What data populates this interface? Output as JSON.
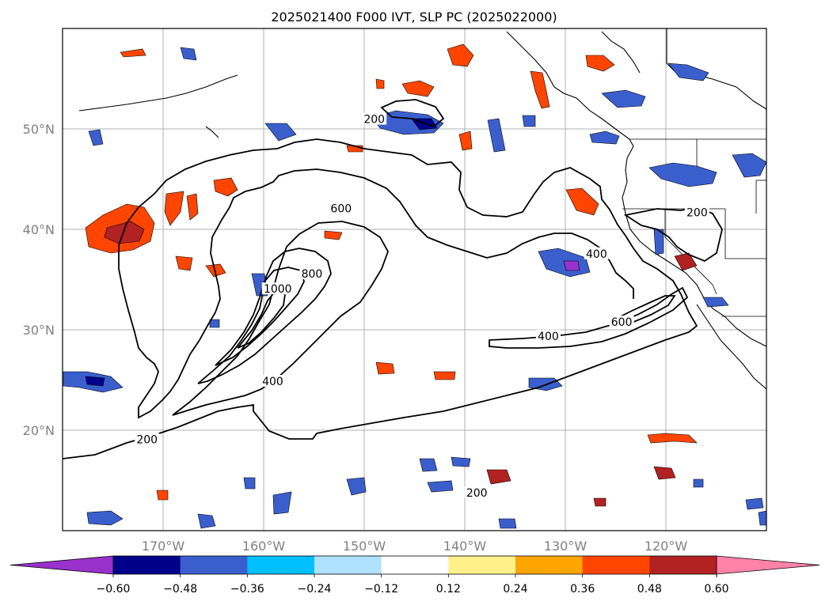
{
  "title": "2025021400 F000 IVT, SLP PC (2025022000)",
  "map": {
    "lon_range": [
      -180,
      -110
    ],
    "lat_range": [
      10,
      60
    ],
    "lat_ticks": [
      {
        "value": 20,
        "label": "20°N"
      },
      {
        "value": 30,
        "label": "30°N"
      },
      {
        "value": 40,
        "label": "40°N"
      },
      {
        "value": 50,
        "label": "50°N"
      }
    ],
    "lon_ticks": [
      {
        "value": -170,
        "label": "170°W"
      },
      {
        "value": -160,
        "label": "160°W"
      },
      {
        "value": -150,
        "label": "150°W"
      },
      {
        "value": -140,
        "label": "140°W"
      },
      {
        "value": -130,
        "label": "130°W"
      },
      {
        "value": -120,
        "label": "120°W"
      }
    ],
    "grid": true,
    "contour_labels": [
      {
        "text": "200",
        "lon": -149,
        "lat": 50.9
      },
      {
        "text": "600",
        "lon": -152.3,
        "lat": 42.0
      },
      {
        "text": "800",
        "lon": -155.2,
        "lat": 35.5
      },
      {
        "text": "1000",
        "lon": -158.6,
        "lat": 34.0
      },
      {
        "text": "400",
        "lon": -159.1,
        "lat": 24.8
      },
      {
        "text": "200",
        "lon": -171.6,
        "lat": 19.0
      },
      {
        "text": "200",
        "lon": -138.8,
        "lat": 13.7
      },
      {
        "text": "400",
        "lon": -126.9,
        "lat": 37.5
      },
      {
        "text": "400",
        "lon": -131.7,
        "lat": 29.3
      },
      {
        "text": "600",
        "lon": -124.4,
        "lat": 30.7
      },
      {
        "text": "200",
        "lon": -116.9,
        "lat": 41.6
      }
    ]
  },
  "colorbar": {
    "tick_labels": [
      "−0.60",
      "−0.48",
      "−0.36",
      "−0.24",
      "−0.12",
      "0.12",
      "0.24",
      "0.36",
      "0.48",
      "0.60"
    ],
    "under_color": "#9932cc",
    "colors": [
      "#00008b",
      "#3a5fcd",
      "#00bfff",
      "#b0e2ff",
      "#ffffff",
      "#fff08a",
      "#ffa500",
      "#ff4500",
      "#b22222"
    ],
    "over_color": "#ff82ab"
  }
}
